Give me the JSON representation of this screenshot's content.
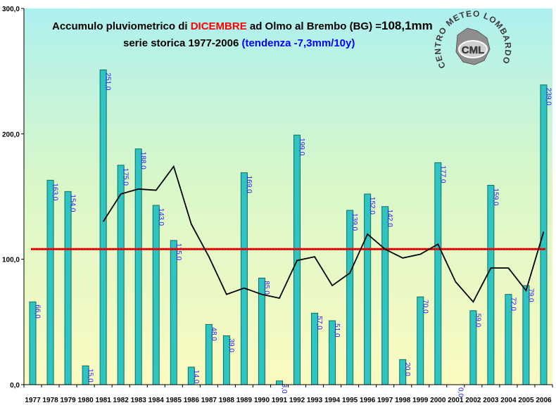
{
  "chart_data": {
    "type": "bar",
    "title_prefix": "Accumulo pluviometrico di ",
    "title_month": "DICEMBRE",
    "title_middle": " ad Olmo al Brembo (BG) =",
    "title_mean": "108,1mm",
    "subtitle_prefix": "serie storica 1977-2006 ",
    "subtitle_trend": "(tendenza -7,3mm/10y)",
    "categories": [
      "1977",
      "1978",
      "1979",
      "1980",
      "1981",
      "1982",
      "1983",
      "1984",
      "1985",
      "1986",
      "1987",
      "1988",
      "1989",
      "1990",
      "1991",
      "1992",
      "1993",
      "1994",
      "1995",
      "1996",
      "1997",
      "1998",
      "1999",
      "2000",
      "2001",
      "2002",
      "2003",
      "2004",
      "2005",
      "2006"
    ],
    "values": [
      66.0,
      163.0,
      154.0,
      15.0,
      251.0,
      175.0,
      188.0,
      143.0,
      115.0,
      14.0,
      48.0,
      39.0,
      169.0,
      85.0,
      3.0,
      199.0,
      57.0,
      51.0,
      139.0,
      152.0,
      142.0,
      20.0,
      70.0,
      177.0,
      0.0,
      59.0,
      159.0,
      72.0,
      79.0,
      239.0
    ],
    "value_labels": [
      "66,0",
      "163,0",
      "154,0",
      "15,0",
      "251,0",
      "175,0",
      "188,0",
      "143,0",
      "115,0",
      "14,0",
      "48,0",
      "39,0",
      "169,0",
      "85,0",
      "3,0",
      "199,0",
      "57,0",
      "51,0",
      "139,0",
      "152,0",
      "142,0",
      "20,0",
      "70,0",
      "177,0",
      "0,0",
      "59,0",
      "159,0",
      "72,0",
      "79,0",
      "239,0"
    ],
    "mean": 108.1,
    "moving_average": [
      null,
      null,
      null,
      null,
      130,
      152,
      156,
      155,
      174,
      128,
      102,
      72,
      77,
      72,
      69,
      99,
      102,
      79,
      89,
      120,
      108,
      101,
      104,
      112,
      82,
      66,
      93,
      93,
      75,
      122
    ],
    "ylim": [
      0,
      300
    ],
    "yticks": [
      0,
      100,
      200,
      300
    ],
    "ytick_labels": [
      "0,0",
      "100,0",
      "200,0",
      "300,0"
    ],
    "grid": false,
    "colors": {
      "bar": "#2ec4c0",
      "bar_edge": "#0f6f6c",
      "mean_line": "#ff0000",
      "mean_line_dots": "#000000",
      "moving_average": "#000000",
      "title_month": "#ff0000",
      "subtitle_trend": "#0000ff",
      "bar_label": "#1a1aff",
      "bg_top": "#aef0ef",
      "bg_bottom": "#fbfac0"
    }
  },
  "logo": {
    "text_arc": "CENTRO METEO LOMBARDO",
    "text_center": "CML"
  }
}
